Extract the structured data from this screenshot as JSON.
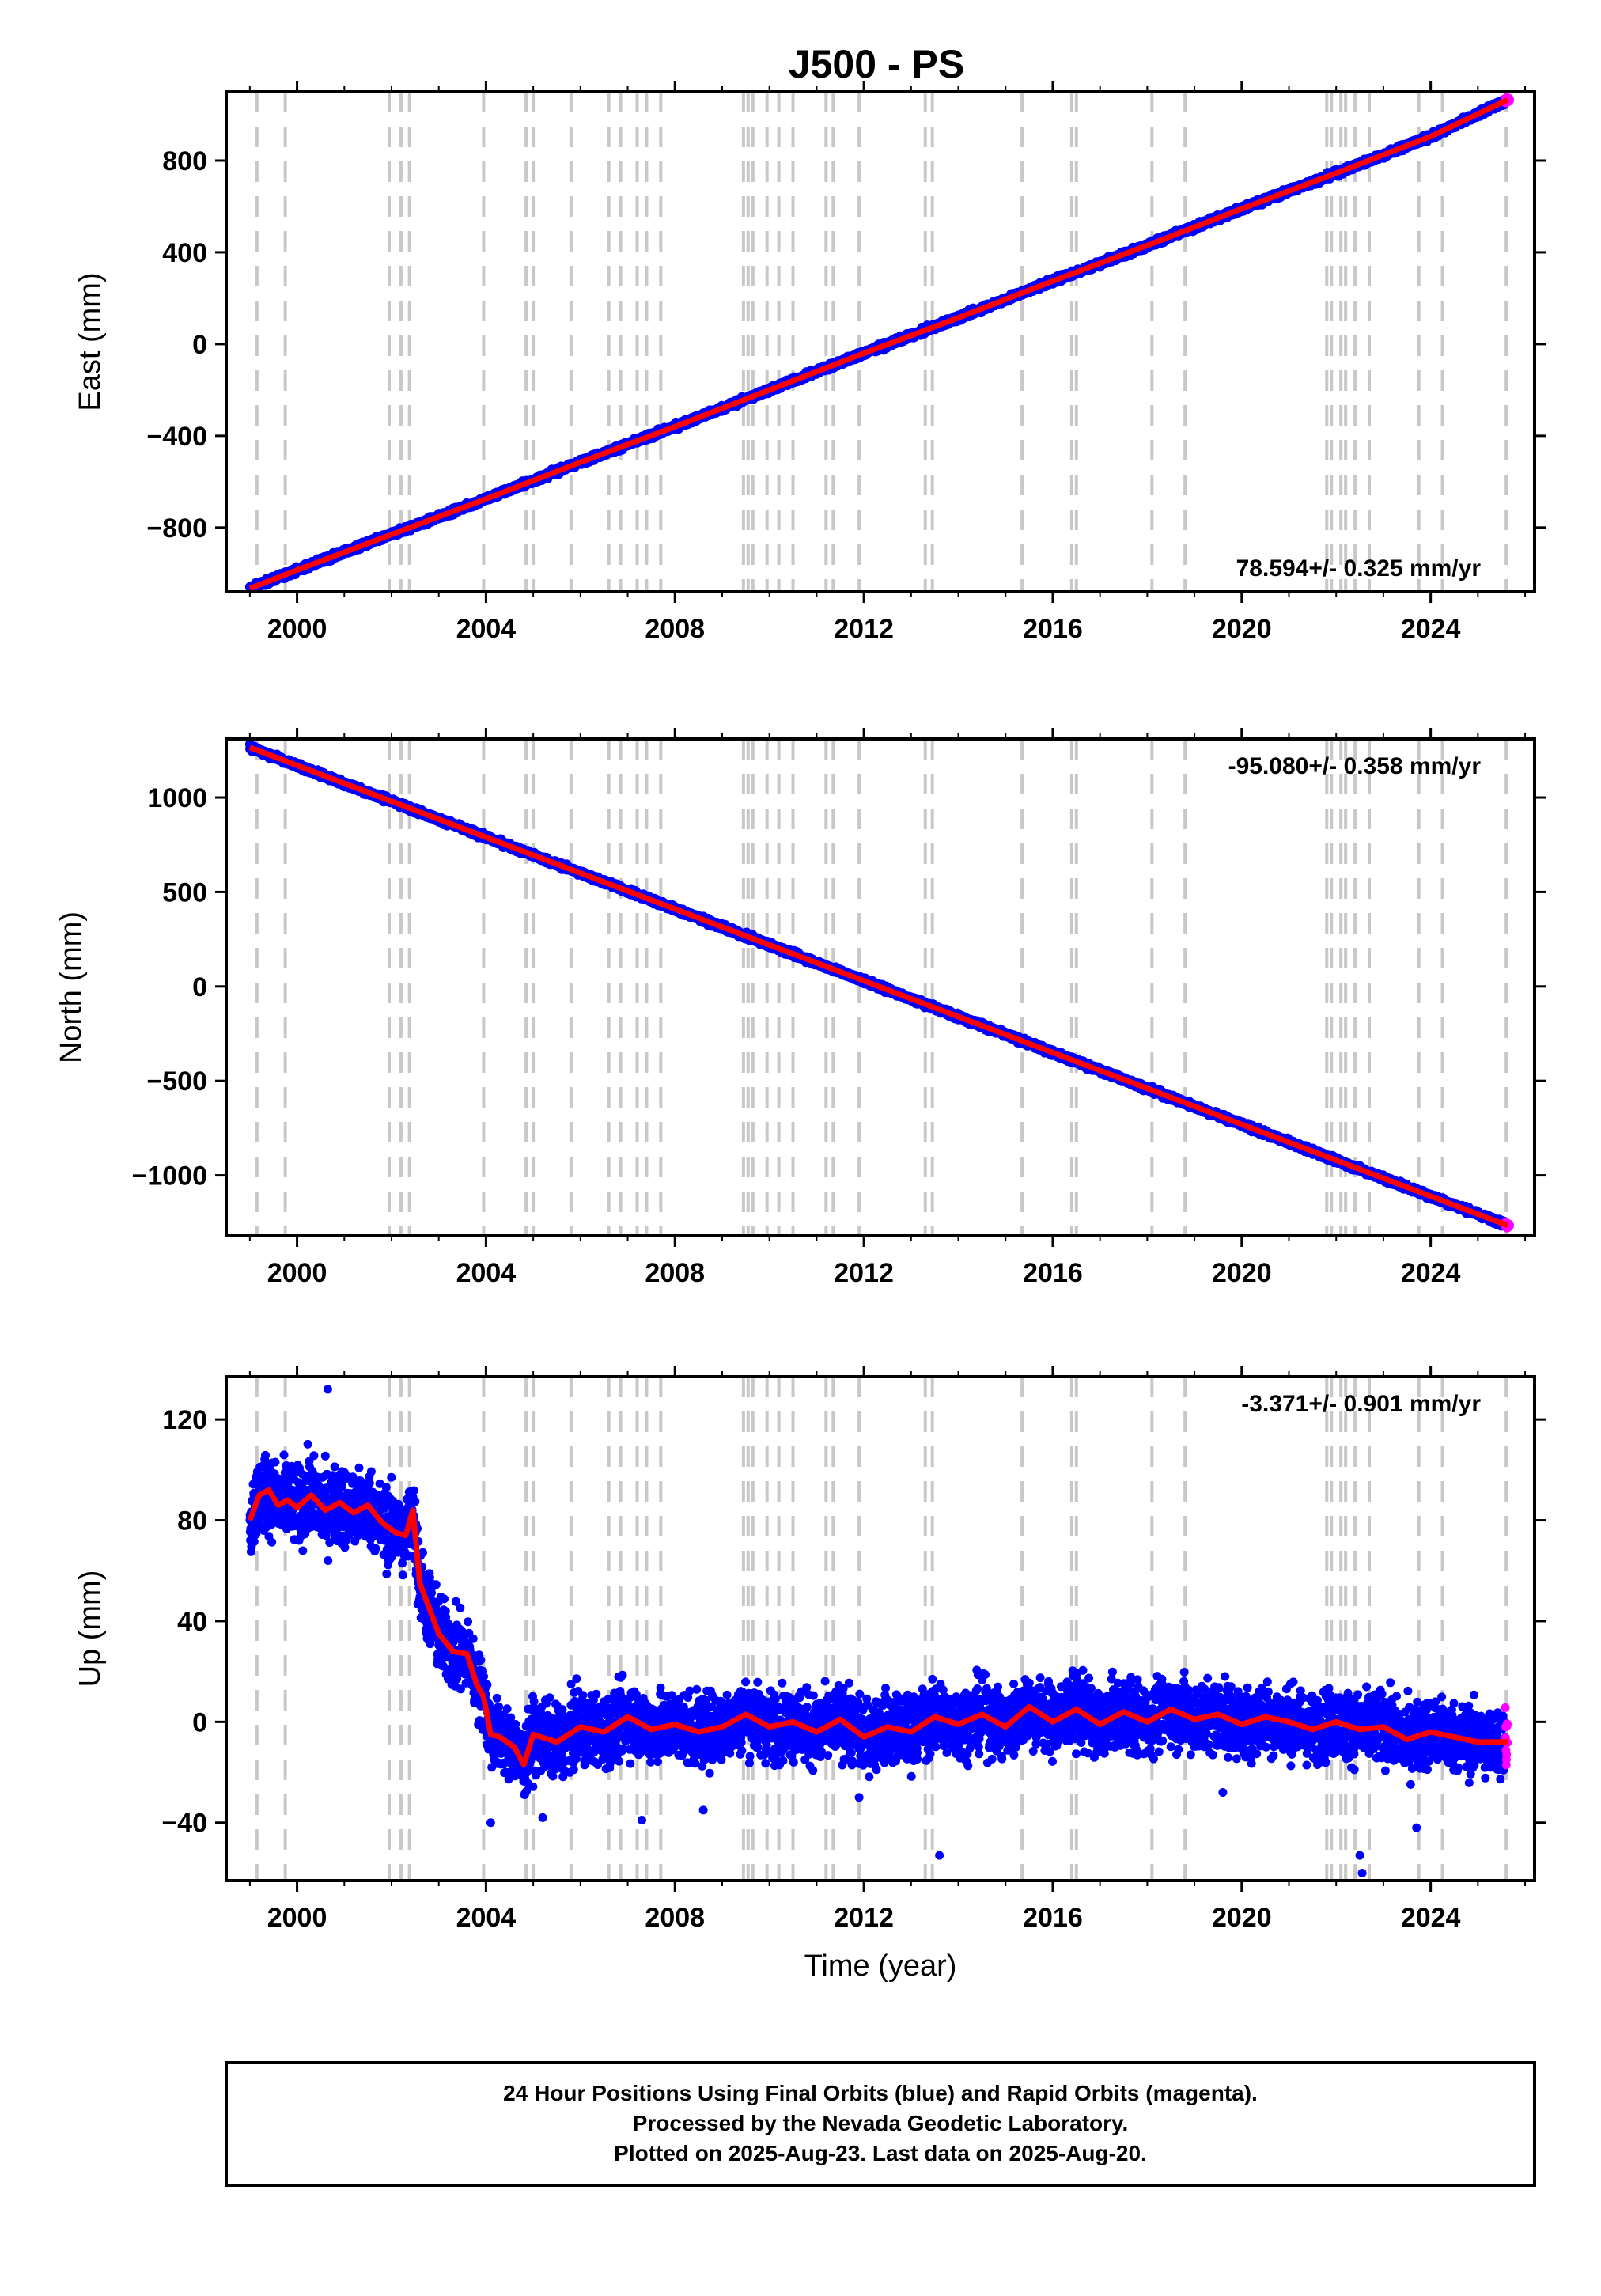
{
  "title": "J500 - PS",
  "colors": {
    "final_points": "#0000ff",
    "rapid_points": "#ff00ff",
    "model_line": "#ff0000",
    "event_lines": "#c8c8c8",
    "frame": "#000000"
  },
  "event_years": [
    1999.15,
    1999.75,
    2001.95,
    2002.2,
    2002.38,
    2003.95,
    2004.85,
    2005.0,
    2005.8,
    2006.6,
    2006.85,
    2007.2,
    2007.4,
    2007.7,
    2009.45,
    2009.55,
    2009.65,
    2009.95,
    2010.2,
    2010.5,
    2011.2,
    2011.35,
    2011.9,
    2013.3,
    2013.45,
    2015.35,
    2016.4,
    2016.5,
    2018.1,
    2018.8,
    2021.8,
    2021.9,
    2022.1,
    2022.2,
    2022.4,
    2022.7,
    2023.75,
    2024.25,
    2025.6
  ],
  "caption": {
    "line1": "24 Hour Positions Using Final Orbits (blue) and Rapid Orbits (magenta).",
    "line2": "Processed by the Nevada Geodetic Laboratory.",
    "line3": "Plotted on 2025-Aug-23. Last data on 2025-Aug-20."
  },
  "chart_data": [
    {
      "type": "scatter",
      "name": "east",
      "ylabel": "East (mm)",
      "xlabel": "",
      "xlim": [
        1998.5,
        2026.2
      ],
      "ylim": [
        -1080,
        1100
      ],
      "xticks": [
        2000,
        2004,
        2008,
        2012,
        2016,
        2020,
        2024
      ],
      "yticks": [
        -800,
        -400,
        0,
        400,
        800
      ],
      "ytick_labels": [
        "−800",
        "−400",
        "0",
        "400",
        "800"
      ],
      "xtick_labels": [
        "2000",
        "2004",
        "2008",
        "2012",
        "2016",
        "2020",
        "2024"
      ],
      "rate_label": "78.594+/- 0.325 mm/yr",
      "rate_position": "bottom-right",
      "start_year": 1999.0,
      "end_year": 2025.63,
      "model_x": [
        1999.0,
        2000.0,
        2002.0,
        2004.0,
        2006.0,
        2008.0,
        2010.0,
        2012.0,
        2014.0,
        2016.0,
        2018.0,
        2020.0,
        2022.0,
        2024.0,
        2025.63
      ],
      "model_y": [
        -1065,
        -985,
        -830,
        -675,
        -515,
        -360,
        -200,
        -40,
        115,
        275,
        430,
        590,
        745,
        905,
        1065
      ],
      "noise_mm": 6
    },
    {
      "type": "scatter",
      "name": "north",
      "ylabel": "North (mm)",
      "xlabel": "",
      "xlim": [
        1998.5,
        2026.2
      ],
      "ylim": [
        -1320,
        1310
      ],
      "xticks": [
        2000,
        2004,
        2008,
        2012,
        2016,
        2020,
        2024
      ],
      "yticks": [
        -1000,
        -500,
        0,
        500,
        1000
      ],
      "ytick_labels": [
        "−1000",
        "−500",
        "0",
        "500",
        "1000"
      ],
      "xtick_labels": [
        "2000",
        "2004",
        "2008",
        "2012",
        "2016",
        "2020",
        "2024"
      ],
      "rate_label": "-95.080+/- 0.358 mm/yr",
      "rate_position": "top-right",
      "start_year": 1999.0,
      "end_year": 2025.63,
      "model_x": [
        1999.0,
        2000.0,
        2002.0,
        2004.0,
        2006.0,
        2008.0,
        2010.0,
        2012.0,
        2014.0,
        2016.0,
        2018.0,
        2020.0,
        2022.0,
        2024.0,
        2025.63
      ],
      "model_y": [
        1265,
        1170,
        980,
        790,
        600,
        410,
        220,
        30,
        -160,
        -350,
        -540,
        -730,
        -920,
        -1110,
        -1265
      ],
      "noise_mm": 7
    },
    {
      "type": "scatter",
      "name": "up",
      "ylabel": "Up (mm)",
      "xlabel": "Time (year)",
      "xlim": [
        1998.5,
        2026.2
      ],
      "ylim": [
        -63,
        137
      ],
      "xticks": [
        2000,
        2004,
        2008,
        2012,
        2016,
        2020,
        2024
      ],
      "yticks": [
        -40,
        0,
        40,
        80,
        120
      ],
      "ytick_labels": [
        "−40",
        "0",
        "40",
        "80",
        "120"
      ],
      "xtick_labels": [
        "2000",
        "2004",
        "2008",
        "2012",
        "2016",
        "2020",
        "2024"
      ],
      "rate_label": "-3.371+/- 0.901 mm/yr",
      "rate_position": "top-right",
      "data_segments": [
        {
          "start": 1999.0,
          "end": 2003.5,
          "level": 84,
          "spread": 18
        },
        {
          "start": 2003.5,
          "end": 2025.63,
          "level": -2,
          "spread": 16
        }
      ],
      "model_x": [
        1999.0,
        1999.2,
        1999.4,
        1999.6,
        1999.8,
        2000.0,
        2000.3,
        2000.6,
        2000.9,
        2001.2,
        2001.5,
        2001.8,
        2002.1,
        2002.3,
        2002.45,
        2002.6,
        2002.8,
        2003.0,
        2003.3,
        2003.6,
        2003.8,
        2003.95,
        2004.1,
        2004.3,
        2004.6,
        2004.8,
        2005.0,
        2005.5,
        2006.0,
        2006.5,
        2007.0,
        2007.5,
        2008.0,
        2008.5,
        2009.0,
        2009.5,
        2010.0,
        2010.5,
        2011.0,
        2011.5,
        2012.0,
        2012.5,
        2013.0,
        2013.5,
        2014.0,
        2014.5,
        2015.0,
        2015.5,
        2016.0,
        2016.5,
        2017.0,
        2017.5,
        2018.0,
        2018.5,
        2019.0,
        2019.5,
        2020.0,
        2020.5,
        2021.0,
        2021.5,
        2022.0,
        2022.5,
        2023.0,
        2023.5,
        2024.0,
        2024.5,
        2025.0,
        2025.63
      ],
      "model_y": [
        80,
        90,
        92,
        86,
        88,
        85,
        90,
        84,
        87,
        83,
        86,
        79,
        75,
        74,
        84,
        55,
        45,
        35,
        28,
        27,
        15,
        10,
        -5,
        -6,
        -10,
        -17,
        -5,
        -8,
        -2,
        -4,
        2,
        -3,
        -1,
        -4,
        -2,
        3,
        -2,
        0,
        -4,
        1,
        -6,
        -2,
        -4,
        2,
        -1,
        3,
        -2,
        6,
        0,
        5,
        -1,
        4,
        0,
        5,
        1,
        3,
        -1,
        2,
        0,
        -3,
        0,
        -3,
        -2,
        -7,
        -4,
        -6,
        -8,
        -8
      ],
      "outliers_x": [
        2000.65,
        2007.3,
        2013.6,
        2022.5,
        2022.55,
        2023.7,
        2004.1,
        2005.2,
        2008.6,
        2011.9,
        2019.6
      ],
      "outliers_y": [
        132,
        -39,
        -53,
        -53,
        -60,
        -42,
        -40,
        -38,
        -35,
        -30,
        -28
      ]
    }
  ]
}
